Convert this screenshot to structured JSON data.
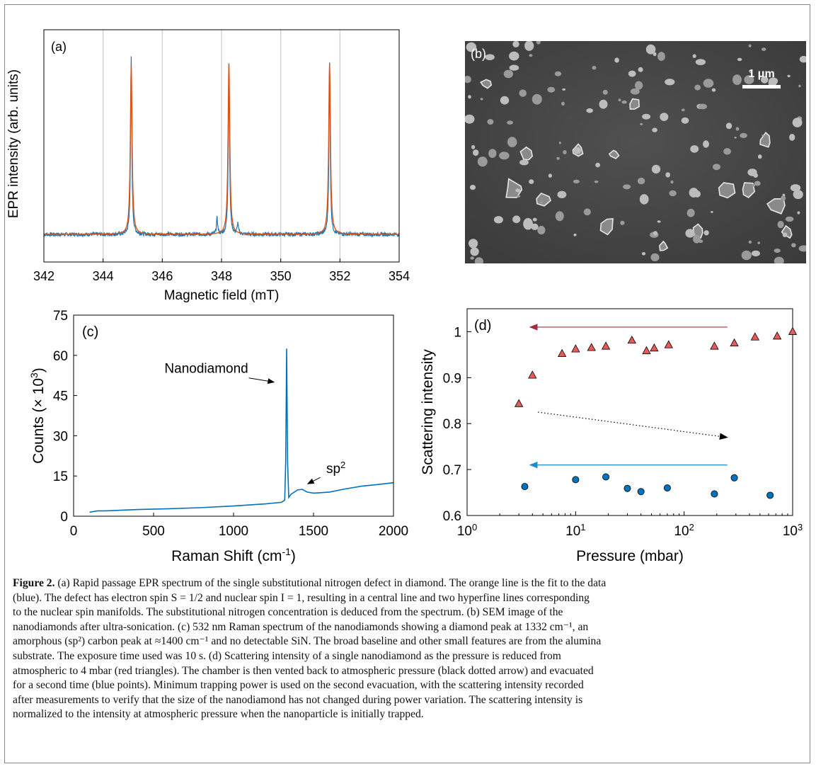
{
  "panels": {
    "a": {
      "label": "(a)"
    },
    "b": {
      "label": "(b)",
      "scalebar": "1 μm"
    },
    "c": {
      "label": "(c)"
    },
    "d": {
      "label": "(d)"
    }
  },
  "chart_data": [
    {
      "panel": "a",
      "type": "line",
      "xlabel": "Magnetic field (mT)",
      "ylabel": "EPR intensity (arb. units)",
      "xlim": [
        342,
        354
      ],
      "xticks": [
        "342",
        "344",
        "346",
        "348",
        "350",
        "352",
        "354"
      ],
      "grid_x": true,
      "series": [
        {
          "color": "#1f77b4",
          "peaks": [
            {
              "x": 344.95,
              "y": 1.0
            },
            {
              "x": 347.85,
              "y": 0.09
            },
            {
              "x": 348.25,
              "y": 0.97
            },
            {
              "x": 348.55,
              "y": 0.06
            },
            {
              "x": 351.65,
              "y": 0.97
            }
          ],
          "baseline": 0
        },
        {
          "color": "#d95319",
          "peaks": [
            {
              "x": 344.95,
              "y": 0.96
            },
            {
              "x": 348.25,
              "y": 0.97
            },
            {
              "x": 351.65,
              "y": 0.97
            }
          ],
          "baseline": 0
        }
      ]
    },
    {
      "panel": "c",
      "type": "line",
      "xlabel_main": "Raman Shift (cm",
      "xlabel_sup": "-1",
      "xlabel_end": ")",
      "ylabel_main": "Counts (× 10",
      "ylabel_sup": "3",
      "ylabel_end": ")",
      "xlim": [
        0,
        2000
      ],
      "ylim": [
        0,
        75
      ],
      "xticks": [
        "0",
        "500",
        "1000",
        "1500",
        "2000"
      ],
      "yticks": [
        "0",
        "15",
        "30",
        "45",
        "60",
        "75"
      ],
      "series": [
        {
          "color": "#0072bd",
          "points": [
            [
              100,
              1.5
            ],
            [
              150,
              2
            ],
            [
              200,
              2
            ],
            [
              400,
              2.5
            ],
            [
              600,
              2.8
            ],
            [
              800,
              3.2
            ],
            [
              1000,
              3.8
            ],
            [
              1200,
              4.6
            ],
            [
              1300,
              5.2
            ],
            [
              1320,
              6
            ],
            [
              1326,
              20
            ],
            [
              1332,
              62.5
            ],
            [
              1338,
              20
            ],
            [
              1345,
              7
            ],
            [
              1360,
              8.2
            ],
            [
              1400,
              9.8
            ],
            [
              1430,
              10
            ],
            [
              1460,
              9
            ],
            [
              1500,
              8.6
            ],
            [
              1600,
              9
            ],
            [
              1700,
              10.2
            ],
            [
              1800,
              11.2
            ],
            [
              1900,
              11.8
            ],
            [
              2000,
              12.5
            ]
          ]
        }
      ],
      "annotations": [
        {
          "text": "Nanodiamond",
          "x": 830,
          "y": 55,
          "arrow_to": [
            1320,
            50
          ]
        },
        {
          "text_main": "sp",
          "text_sup": "2",
          "x": 1640,
          "y": 15,
          "arrow_to": [
            1450,
            11
          ]
        }
      ]
    },
    {
      "panel": "d",
      "type": "scatter",
      "xscale": "log",
      "xlabel": "Pressure (mbar)",
      "ylabel": "Scattering intensity",
      "xlim": [
        1,
        1000
      ],
      "ylim": [
        0.6,
        1.05
      ],
      "xticks": [
        {
          "base": "10",
          "exp": "0"
        },
        {
          "base": "10",
          "exp": "1"
        },
        {
          "base": "10",
          "exp": "2"
        },
        {
          "base": "10",
          "exp": "3"
        }
      ],
      "yticks": [
        "0.6",
        "0.7",
        "0.8",
        "0.9",
        "1"
      ],
      "series": [
        {
          "marker": "triangle",
          "color": "#e8595a",
          "points": [
            [
              3,
              0.843
            ],
            [
              4,
              0.905
            ],
            [
              7.5,
              0.952
            ],
            [
              10,
              0.962
            ],
            [
              14,
              0.965
            ],
            [
              19,
              0.968
            ],
            [
              33,
              0.981
            ],
            [
              45,
              0.958
            ],
            [
              53,
              0.964
            ],
            [
              72,
              0.971
            ],
            [
              190,
              0.968
            ],
            [
              290,
              0.975
            ],
            [
              450,
              0.988
            ],
            [
              720,
              0.99
            ],
            [
              1000,
              1.0
            ]
          ]
        },
        {
          "marker": "circle",
          "color": "#0072bd",
          "points": [
            [
              3.4,
              0.663
            ],
            [
              10,
              0.678
            ],
            [
              19,
              0.684
            ],
            [
              30,
              0.659
            ],
            [
              40,
              0.652
            ],
            [
              70,
              0.66
            ],
            [
              190,
              0.647
            ],
            [
              290,
              0.682
            ],
            [
              620,
              0.644
            ]
          ]
        }
      ],
      "arrows": [
        {
          "style": "solid",
          "color": "#a52a3a",
          "from": [
            250,
            1.01
          ],
          "to": [
            3.8,
            1.01
          ]
        },
        {
          "style": "dotted",
          "color": "#000000",
          "from": [
            4.5,
            0.825
          ],
          "to": [
            250,
            0.77
          ]
        },
        {
          "style": "solid",
          "color": "#1a8fd0",
          "from": [
            250,
            0.71
          ],
          "to": [
            3.8,
            0.71
          ]
        }
      ]
    }
  ],
  "caption": {
    "label": "Figure 2.",
    "l1": " (a) Rapid passage EPR spectrum of the single substitutional nitrogen defect in diamond. The orange line is the fit to the data",
    "l2": "(blue). The defect has electron spin S = 1/2 and nuclear spin I = 1, resulting in a central line and two hyperfine lines corresponding",
    "l3": "to the nuclear spin manifolds. The substitutional nitrogen concentration is deduced from the spectrum. (b) SEM image of the",
    "l4": "nanodiamonds after ultra-sonication. (c) 532 nm Raman spectrum of the nanodiamonds showing a diamond peak at 1332 cm⁻¹, an",
    "l5": "amorphous (sp²) carbon peak at ≈1400 cm⁻¹ and no detectable SiN. The broad baseline and other small features are from the alumina",
    "l6": "substrate. The exposure time used was 10 s. (d) Scattering intensity of a single nanodiamond as the pressure is reduced from",
    "l7": "atmospheric to 4 mbar (red triangles). The chamber is then vented back to atmospheric pressure (black dotted arrow) and evacuated",
    "l8": "for a second time (blue points). Minimum trapping power is used on the second evacuation, with the scattering intensity recorded",
    "l9": "after measurements to verify that the size of the nanodiamond has not changed during power variation. The scattering intensity is",
    "l10": "normalized to the intensity at atmospheric pressure when the nanoparticle is initially trapped."
  }
}
